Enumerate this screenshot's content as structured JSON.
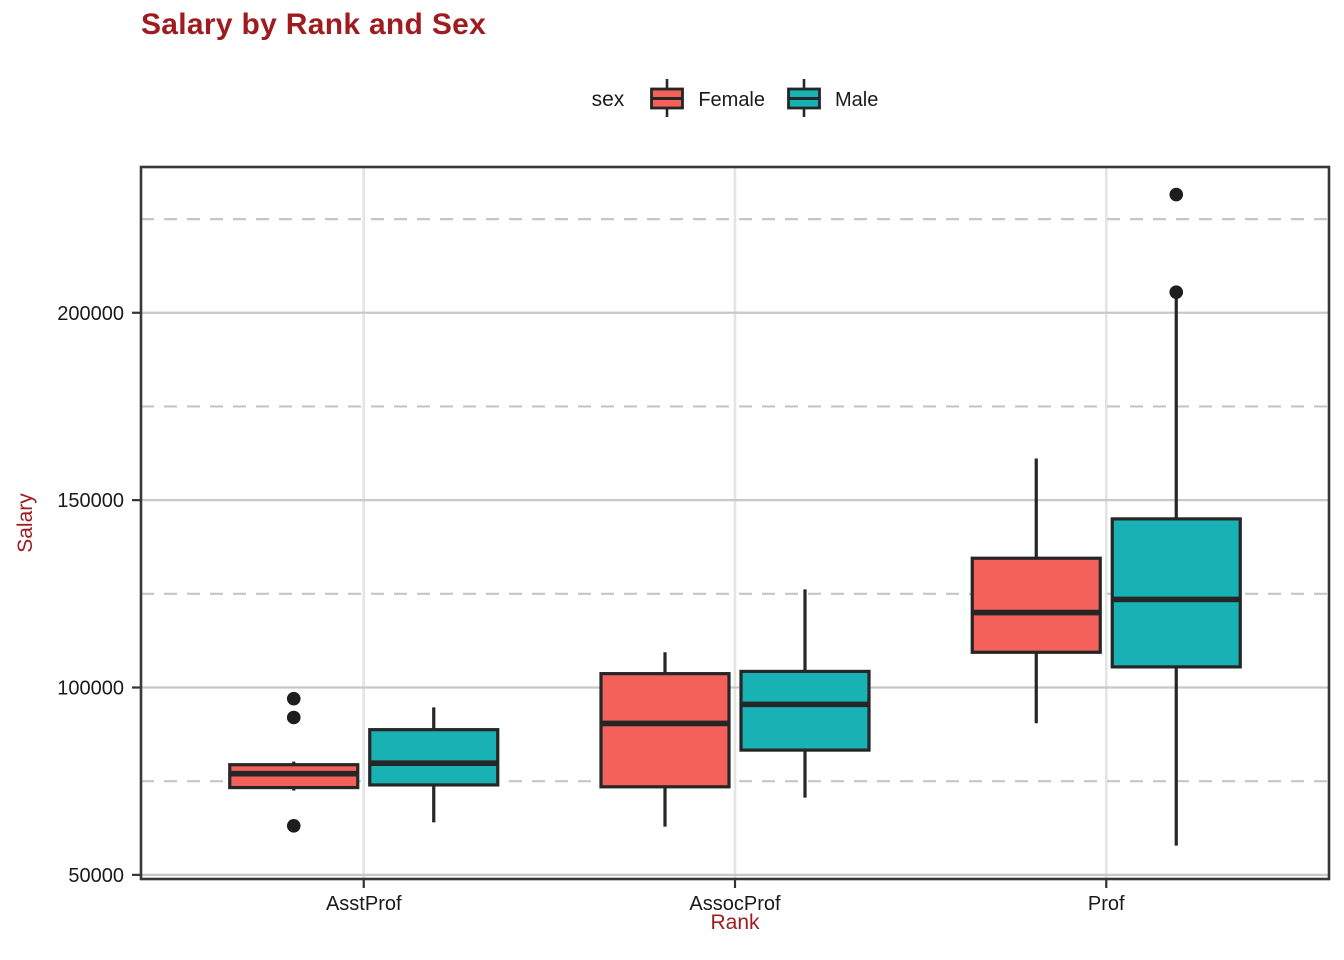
{
  "chart": {
    "title": "Salary by Rank and Sex",
    "xlabel": "Rank",
    "ylabel": "Salary",
    "legend_title": "sex"
  },
  "colors": {
    "title_text": "#9E1B20",
    "axis_title_text": "#9E1B20",
    "tick_text": "#1A1A1A",
    "female_fill": "#F4605A",
    "male_fill": "#18B2B5",
    "box_stroke": "#262626",
    "outlier": "#1E1E1E",
    "grid_major_h": "#C8C8C8",
    "grid_minor_h": "#C6C6C6",
    "grid_major_v": "#E4E4E4",
    "panel_border": "#383838",
    "tick_mark": "#333333",
    "panel_bg": "#FFFFFF"
  },
  "chart_data": {
    "type": "boxplot",
    "title": "Salary by Rank and Sex",
    "xlabel": "Rank",
    "ylabel": "Salary",
    "categories": [
      "AsstProf",
      "AssocProf",
      "Prof"
    ],
    "legend": {
      "title": "sex",
      "position": "top-center"
    },
    "y_axis": {
      "range": [
        48900,
        238900
      ],
      "ticks": [
        50000,
        100000,
        150000,
        200000
      ],
      "tick_labels": [
        "50000",
        "100000",
        "150000",
        "200000"
      ],
      "minor_gridlines": [
        75000,
        125000,
        175000,
        225000
      ],
      "major_style": "solid",
      "minor_style": "dashed"
    },
    "series": [
      {
        "name": "Female",
        "color": "#F4605A",
        "boxes": [
          {
            "category": "AsstProf",
            "whisker_low": 72500,
            "q1": 73300,
            "median": 77000,
            "q3": 79400,
            "whisker_high": 80225,
            "outliers": [
              63100,
              92000,
              97032
            ]
          },
          {
            "category": "AssocProf",
            "whisker_low": 62884,
            "q1": 73500,
            "median": 90400,
            "q3": 103700,
            "whisker_high": 109400,
            "outliers": []
          },
          {
            "category": "Prof",
            "whisker_low": 90450,
            "q1": 109400,
            "median": 120000,
            "q3": 134500,
            "whisker_high": 161100,
            "outliers": []
          }
        ]
      },
      {
        "name": "Male",
        "color": "#18B2B5",
        "boxes": [
          {
            "category": "AsstProf",
            "whisker_low": 64000,
            "q1": 74000,
            "median": 79800,
            "q3": 88750,
            "whisker_high": 94700,
            "outliers": []
          },
          {
            "category": "AssocProf",
            "whisker_low": 70600,
            "q1": 83300,
            "median": 95500,
            "q3": 104300,
            "whisker_high": 126200,
            "outliers": []
          },
          {
            "category": "Prof",
            "whisker_low": 57800,
            "q1": 105500,
            "median": 123500,
            "q3": 145000,
            "whisker_high": 204000,
            "outliers": [
              205500,
              231545
            ]
          }
        ]
      }
    ]
  }
}
